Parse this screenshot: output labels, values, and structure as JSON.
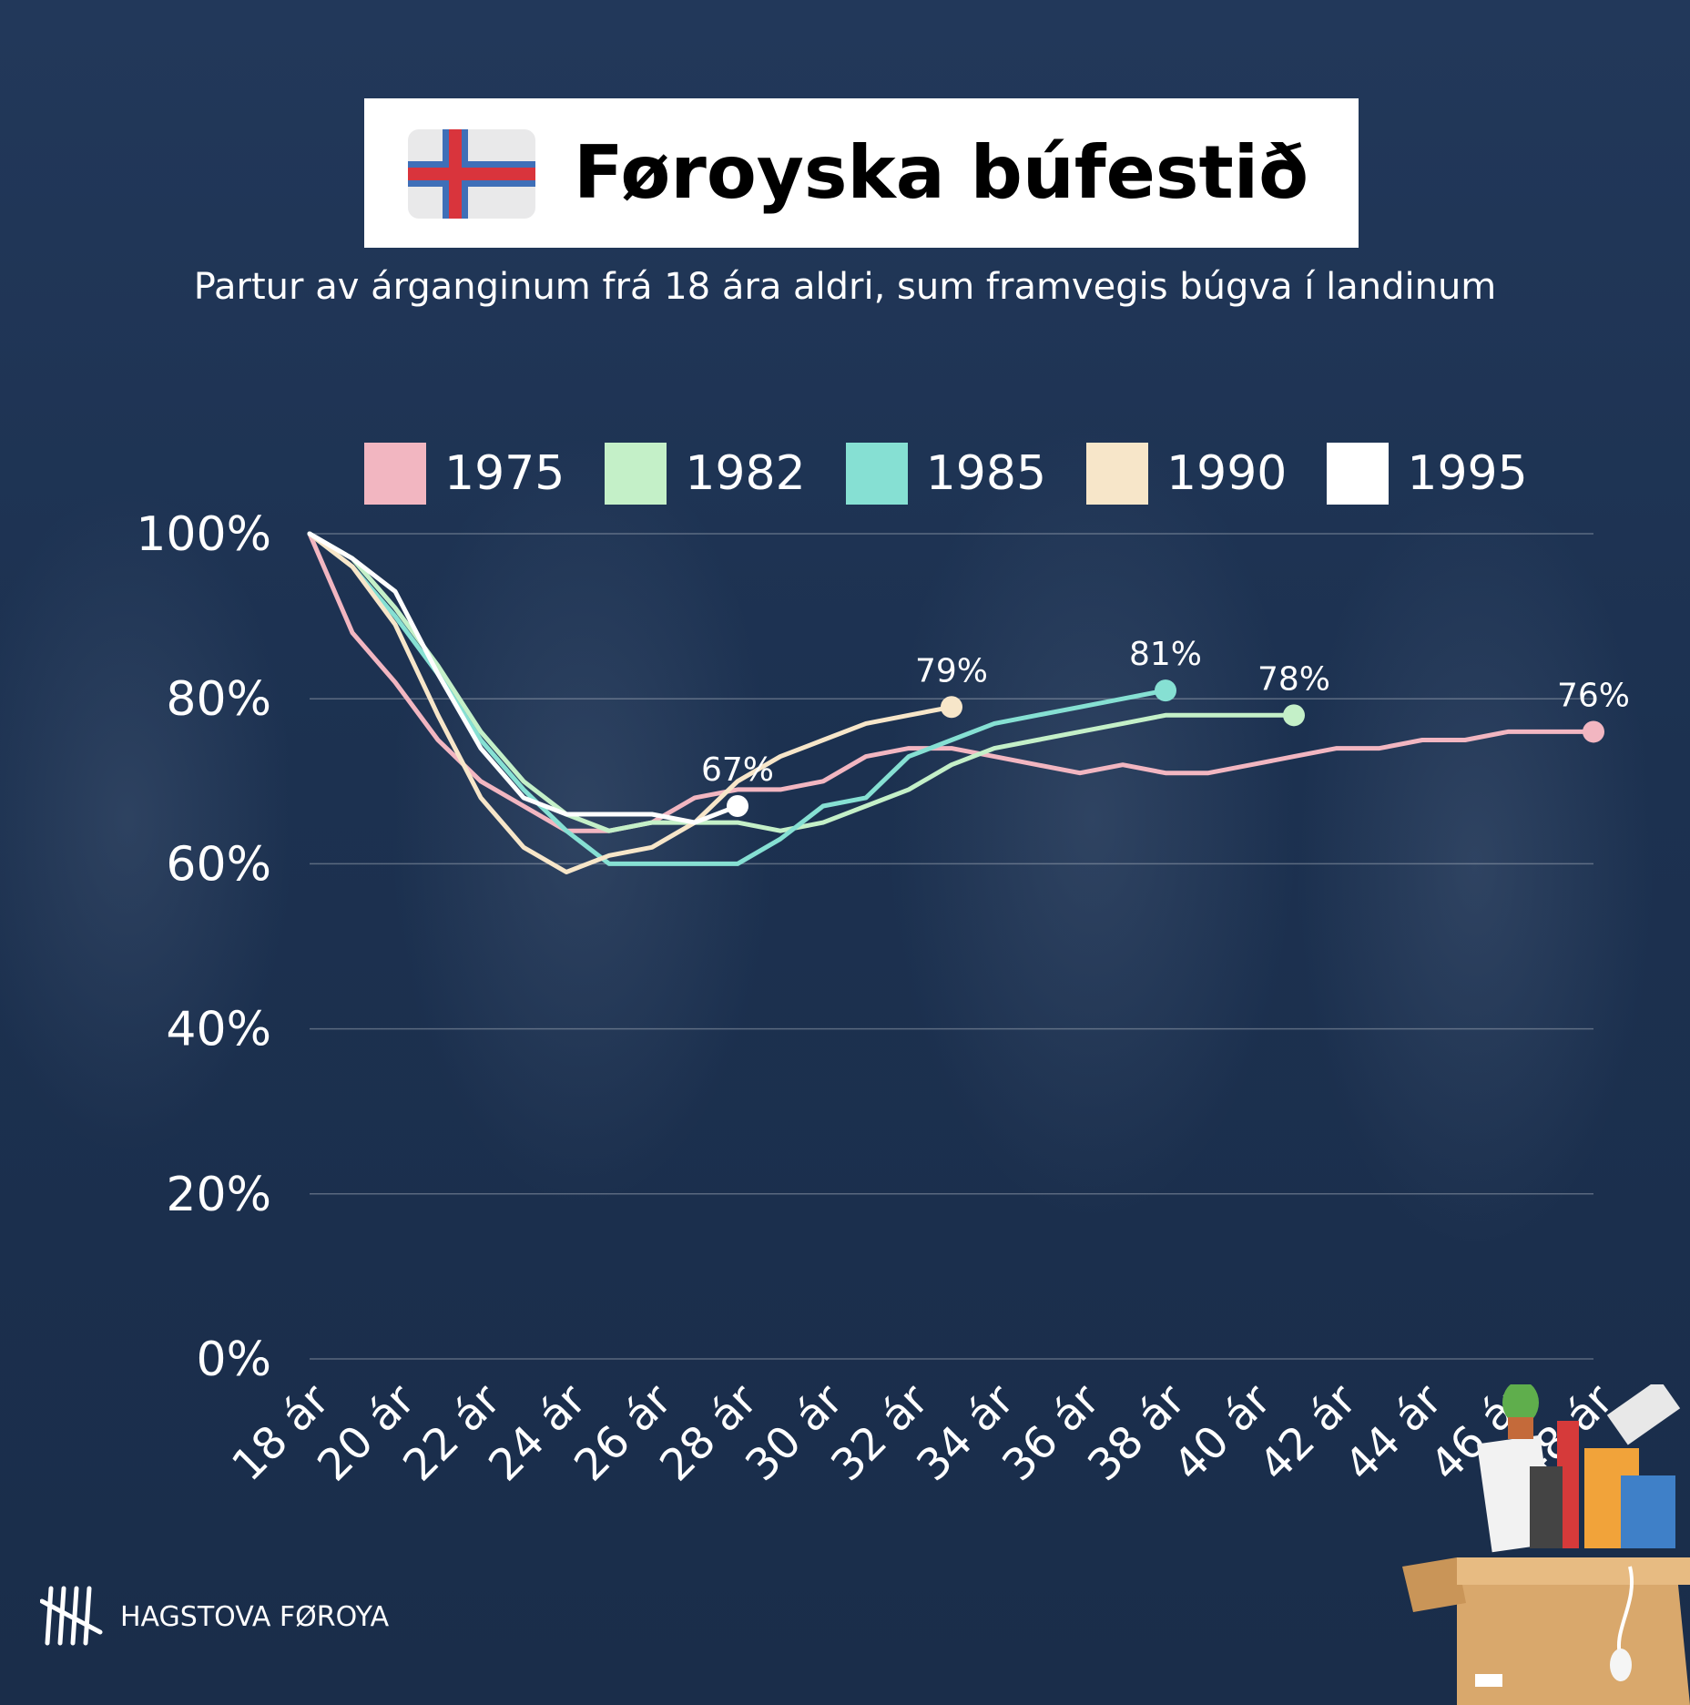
{
  "header": {
    "title": "Føroyska búfestið",
    "subtitle": "Partur av árganginum frá 18 ára aldri, sum framvegis búgva í landinum",
    "flag_icon": "faroe-islands-flag-icon",
    "flag_colors": {
      "field": "#e9e9ea",
      "cross_outer": "#3f6fb8",
      "cross_inner": "#d9343c"
    }
  },
  "footer": {
    "logo_icon": "tally-marks-logo-icon",
    "organization": "HAGSTOVA FØROYA"
  },
  "decoration_icon": "office-supplies-box-icon",
  "chart_data": {
    "type": "line",
    "title": "",
    "xlabel": "",
    "ylabel": "",
    "ylim": [
      0,
      100
    ],
    "y_ticks": [
      "0%",
      "20%",
      "40%",
      "60%",
      "80%",
      "100%"
    ],
    "y_tick_values": [
      0,
      20,
      40,
      60,
      80,
      100
    ],
    "x_ticks": [
      "18 ár",
      "20 ár",
      "22 ár",
      "24 ár",
      "26 ár",
      "28 ár",
      "30 ár",
      "32 ár",
      "34 ár",
      "36 ár",
      "38 ár",
      "40 ár",
      "42 ár",
      "44 ár",
      "46 ár",
      "48 ár"
    ],
    "x_tick_values": [
      18,
      20,
      22,
      24,
      26,
      28,
      30,
      32,
      34,
      36,
      38,
      40,
      42,
      44,
      46,
      48
    ],
    "xlim": [
      18,
      48
    ],
    "grid": true,
    "legend_position": "top",
    "series": [
      {
        "name": "1975",
        "color": "#f2b6c1",
        "x": [
          18,
          19,
          20,
          21,
          22,
          23,
          24,
          25,
          26,
          27,
          28,
          29,
          30,
          31,
          32,
          33,
          34,
          35,
          36,
          37,
          38,
          39,
          40,
          41,
          42,
          43,
          44,
          45,
          46,
          47,
          48
        ],
        "values": [
          100,
          88,
          82,
          75,
          70,
          67,
          64,
          64,
          65,
          68,
          69,
          69,
          70,
          73,
          74,
          74,
          73,
          72,
          71,
          72,
          71,
          71,
          72,
          73,
          74,
          74,
          75,
          75,
          76,
          76,
          76
        ],
        "end_label": "76%"
      },
      {
        "name": "1982",
        "color": "#c4f0c8",
        "x": [
          18,
          19,
          20,
          21,
          22,
          23,
          24,
          25,
          26,
          27,
          28,
          29,
          30,
          31,
          32,
          33,
          34,
          35,
          36,
          37,
          38,
          39,
          40,
          41
        ],
        "values": [
          100,
          97,
          91,
          84,
          76,
          70,
          66,
          64,
          65,
          65,
          65,
          64,
          65,
          67,
          69,
          72,
          74,
          75,
          76,
          77,
          78,
          78,
          78,
          78
        ],
        "end_label": "78%"
      },
      {
        "name": "1985",
        "color": "#86e0d3",
        "x": [
          18,
          19,
          20,
          21,
          22,
          23,
          24,
          25,
          26,
          27,
          28,
          29,
          30,
          31,
          32,
          33,
          34,
          35,
          36,
          37,
          38
        ],
        "values": [
          100,
          96,
          90,
          83,
          75,
          69,
          64,
          60,
          60,
          60,
          60,
          63,
          67,
          68,
          73,
          75,
          77,
          78,
          79,
          80,
          81
        ],
        "end_label": "81%"
      },
      {
        "name": "1990",
        "color": "#f7e6c9",
        "x": [
          18,
          19,
          20,
          21,
          22,
          23,
          24,
          25,
          26,
          27,
          28,
          29,
          30,
          31,
          32,
          33
        ],
        "values": [
          100,
          96,
          89,
          78,
          68,
          62,
          59,
          61,
          62,
          65,
          70,
          73,
          75,
          77,
          78,
          79
        ],
        "end_label": "79%"
      },
      {
        "name": "1995",
        "color": "#ffffff",
        "x": [
          18,
          19,
          20,
          21,
          22,
          23,
          24,
          25,
          26,
          27,
          28
        ],
        "values": [
          100,
          97,
          93,
          83,
          74,
          68,
          66,
          66,
          66,
          65,
          67
        ],
        "end_label": "67%"
      }
    ]
  }
}
